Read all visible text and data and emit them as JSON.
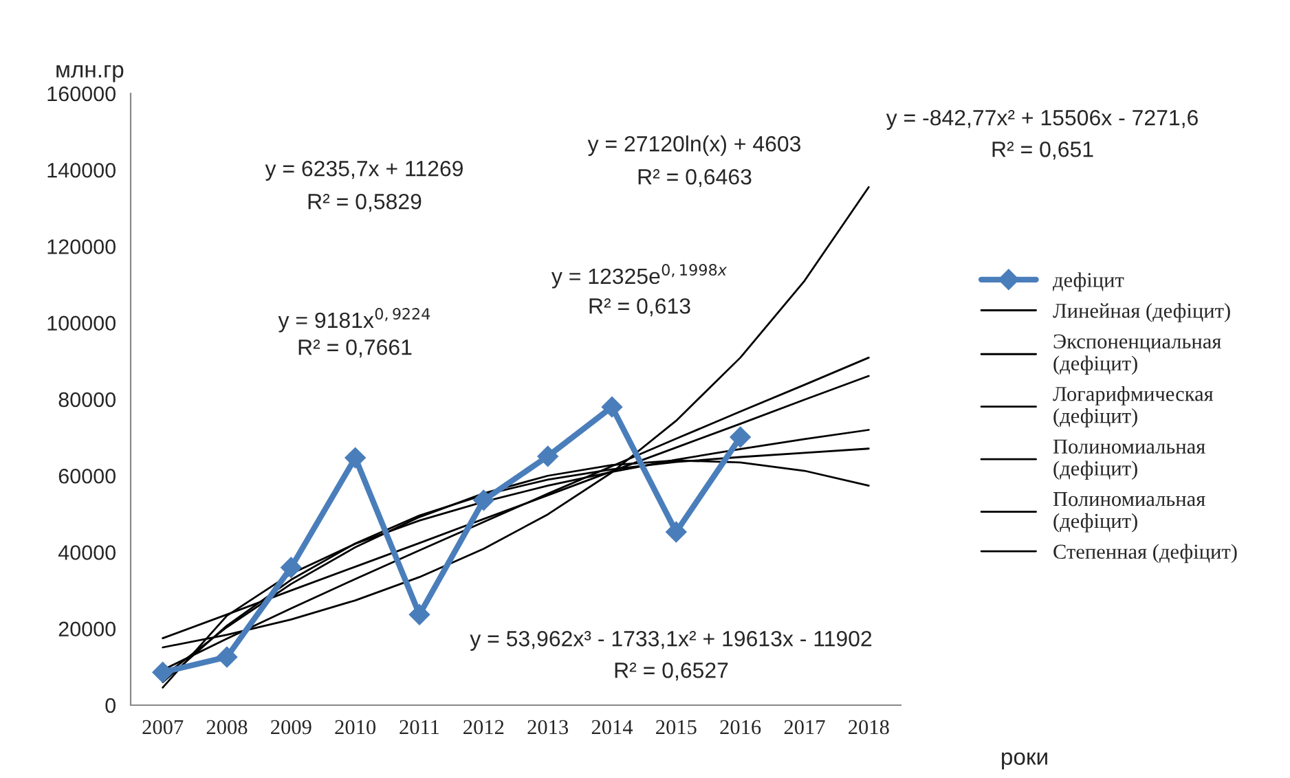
{
  "chart_data": {
    "type": "line",
    "categories": [
      "2007",
      "2008",
      "2009",
      "2010",
      "2011",
      "2012",
      "2013",
      "2014",
      "2015",
      "2016",
      "2017",
      "2018"
    ],
    "series": [
      {
        "name": "дефіцит",
        "color": "#4a7ebb",
        "marker": "diamond",
        "values": [
          8600,
          12600,
          36000,
          64700,
          23700,
          53600,
          65100,
          78000,
          45300,
          70100,
          null,
          null
        ]
      },
      {
        "name": "Линейная (дефіцит)",
        "color": "#000000",
        "values": [
          17500,
          23700,
          30000,
          36200,
          42400,
          48700,
          54900,
          61200,
          67400,
          73600,
          79900,
          86100
        ]
      },
      {
        "name": "Экспоненциальная (дефіцит)",
        "color": "#000000",
        "values": [
          15100,
          18400,
          22400,
          27400,
          33500,
          40900,
          49900,
          60900,
          74400,
          90900,
          111000,
          135500
        ]
      },
      {
        "name": "Логарифмическая (дефіцит)",
        "color": "#000000",
        "values": [
          4600,
          23400,
          34400,
          42200,
          48300,
          53200,
          57400,
          61000,
          64200,
          67000,
          69600,
          72000
        ]
      },
      {
        "name": "Полиномиальная (дефіцит)",
        "color": "#000000",
        "values": [
          7400,
          20400,
          31700,
          41300,
          49200,
          55400,
          60000,
          62800,
          64000,
          63500,
          61300,
          57400
        ]
      },
      {
        "name": "Полиномиальная (дефіцит)",
        "color": "#000000",
        "values": [
          6000,
          20800,
          32800,
          42300,
          49600,
          55000,
          59000,
          61700,
          63600,
          64900,
          66000,
          67100
        ]
      },
      {
        "name": "Степенная (дефіцит)",
        "color": "#000000",
        "values": [
          9200,
          17400,
          25300,
          33000,
          40500,
          47900,
          55300,
          62500,
          69700,
          76800,
          83800,
          90900
        ]
      }
    ],
    "ylabel": "млн.гр",
    "xlabel": "роки",
    "ylim": [
      0,
      160000
    ],
    "yticks": [
      0,
      20000,
      40000,
      60000,
      80000,
      100000,
      120000,
      140000,
      160000
    ],
    "grid": false,
    "legend": "right",
    "annotations": [
      "y = 6235,7x + 11269",
      "R² = 0,5829",
      "y = 27120ln(x) + 4603",
      "R² = 0,6463",
      "y = -842,77x² + 15506x - 7271,6",
      "R² = 0,651",
      "y = 12325e$^{0,1998x}$",
      "R² = 0,613",
      "y = 9181x$^{0,9224}$",
      "R² = 0,7661",
      "y = 53,962x³ - 1733,1x² + 19613x - 11902",
      "R² = 0,6527"
    ]
  }
}
